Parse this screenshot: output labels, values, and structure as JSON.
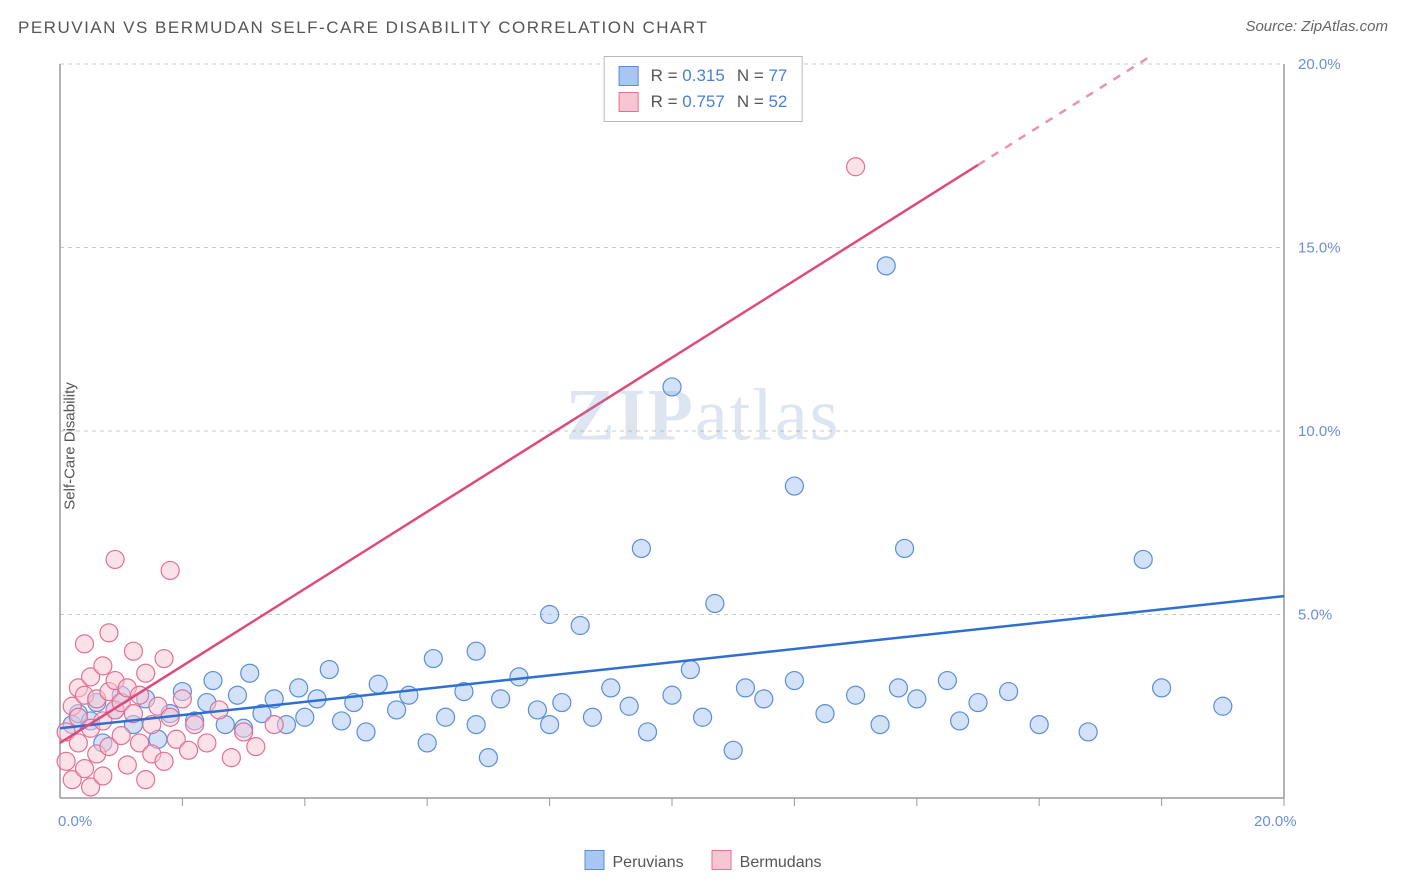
{
  "title": "PERUVIAN VS BERMUDAN SELF-CARE DISABILITY CORRELATION CHART",
  "source": "Source: ZipAtlas.com",
  "watermark": "ZIPatlas",
  "ylabel": "Self-Care Disability",
  "chart": {
    "type": "scatter",
    "xlim": [
      0,
      20
    ],
    "ylim": [
      0,
      20
    ],
    "xtick_step": 2,
    "ytick_step": 5,
    "ytick_labels": [
      "5.0%",
      "10.0%",
      "15.0%",
      "20.0%"
    ],
    "xtick_origin": "0.0%",
    "xtick_max": "20.0%",
    "grid_color": "#c9c9c9",
    "axis_color": "#999999",
    "background_color": "#ffffff",
    "marker_radius": 9,
    "marker_fill_opacity": 0.5,
    "series": [
      {
        "label": "Peruvians",
        "color_fill": "#a7c6f2",
        "color_stroke": "#5a8fd8",
        "trend": {
          "slope": 0.18,
          "intercept": 1.9,
          "color": "#2f6fd0",
          "width": 2.5
        },
        "points": [
          [
            0.2,
            2.0
          ],
          [
            0.3,
            2.3
          ],
          [
            0.5,
            2.1
          ],
          [
            0.6,
            2.6
          ],
          [
            0.7,
            1.5
          ],
          [
            0.9,
            2.4
          ],
          [
            1.0,
            2.8
          ],
          [
            1.2,
            2.0
          ],
          [
            1.4,
            2.7
          ],
          [
            1.6,
            1.6
          ],
          [
            1.8,
            2.3
          ],
          [
            2.0,
            2.9
          ],
          [
            2.2,
            2.1
          ],
          [
            2.4,
            2.6
          ],
          [
            2.5,
            3.2
          ],
          [
            2.7,
            2.0
          ],
          [
            2.9,
            2.8
          ],
          [
            3.0,
            1.9
          ],
          [
            3.1,
            3.4
          ],
          [
            3.3,
            2.3
          ],
          [
            3.5,
            2.7
          ],
          [
            3.7,
            2.0
          ],
          [
            3.9,
            3.0
          ],
          [
            4.0,
            2.2
          ],
          [
            4.2,
            2.7
          ],
          [
            4.4,
            3.5
          ],
          [
            4.6,
            2.1
          ],
          [
            4.8,
            2.6
          ],
          [
            5.0,
            1.8
          ],
          [
            5.2,
            3.1
          ],
          [
            5.5,
            2.4
          ],
          [
            5.7,
            2.8
          ],
          [
            6.0,
            1.5
          ],
          [
            6.1,
            3.8
          ],
          [
            6.3,
            2.2
          ],
          [
            6.6,
            2.9
          ],
          [
            6.8,
            2.0
          ],
          [
            6.8,
            4.0
          ],
          [
            7.0,
            1.1
          ],
          [
            7.2,
            2.7
          ],
          [
            7.5,
            3.3
          ],
          [
            7.8,
            2.4
          ],
          [
            8.0,
            2.0
          ],
          [
            8.0,
            5.0
          ],
          [
            8.2,
            2.6
          ],
          [
            8.5,
            4.7
          ],
          [
            8.7,
            2.2
          ],
          [
            9.0,
            3.0
          ],
          [
            9.3,
            2.5
          ],
          [
            9.5,
            6.8
          ],
          [
            9.6,
            1.8
          ],
          [
            10.0,
            2.8
          ],
          [
            10.3,
            3.5
          ],
          [
            10.5,
            2.2
          ],
          [
            10.7,
            5.3
          ],
          [
            11.0,
            1.3
          ],
          [
            10.0,
            11.2
          ],
          [
            11.2,
            3.0
          ],
          [
            11.5,
            2.7
          ],
          [
            12.0,
            3.2
          ],
          [
            12.0,
            8.5
          ],
          [
            12.5,
            2.3
          ],
          [
            13.0,
            2.8
          ],
          [
            13.4,
            2.0
          ],
          [
            13.7,
            3.0
          ],
          [
            13.8,
            6.8
          ],
          [
            14.0,
            2.7
          ],
          [
            14.5,
            3.2
          ],
          [
            14.7,
            2.1
          ],
          [
            15.0,
            2.6
          ],
          [
            15.5,
            2.9
          ],
          [
            16.0,
            2.0
          ],
          [
            16.8,
            1.8
          ],
          [
            17.7,
            6.5
          ],
          [
            13.5,
            14.5
          ],
          [
            18.0,
            3.0
          ],
          [
            19.0,
            2.5
          ]
        ]
      },
      {
        "label": "Bermudans",
        "color_fill": "#f7c6d3",
        "color_stroke": "#e56f94",
        "trend": {
          "slope": 1.05,
          "intercept": 1.5,
          "color": "#e04a7a",
          "width": 2.5,
          "dash_after_x": 15.0
        },
        "points": [
          [
            0.1,
            1.0
          ],
          [
            0.1,
            1.8
          ],
          [
            0.2,
            2.5
          ],
          [
            0.2,
            0.5
          ],
          [
            0.3,
            3.0
          ],
          [
            0.3,
            1.5
          ],
          [
            0.3,
            2.2
          ],
          [
            0.4,
            2.8
          ],
          [
            0.4,
            0.8
          ],
          [
            0.4,
            4.2
          ],
          [
            0.5,
            1.9
          ],
          [
            0.5,
            3.3
          ],
          [
            0.5,
            0.3
          ],
          [
            0.6,
            2.7
          ],
          [
            0.6,
            1.2
          ],
          [
            0.7,
            3.6
          ],
          [
            0.7,
            2.1
          ],
          [
            0.7,
            0.6
          ],
          [
            0.8,
            2.9
          ],
          [
            0.8,
            4.5
          ],
          [
            0.8,
            1.4
          ],
          [
            0.9,
            2.4
          ],
          [
            0.9,
            3.2
          ],
          [
            0.9,
            6.5
          ],
          [
            1.0,
            1.7
          ],
          [
            1.0,
            2.6
          ],
          [
            1.1,
            3.0
          ],
          [
            1.1,
            0.9
          ],
          [
            1.2,
            2.3
          ],
          [
            1.2,
            4.0
          ],
          [
            1.3,
            1.5
          ],
          [
            1.3,
            2.8
          ],
          [
            1.4,
            3.4
          ],
          [
            1.4,
            0.5
          ],
          [
            1.5,
            2.0
          ],
          [
            1.5,
            1.2
          ],
          [
            1.6,
            2.5
          ],
          [
            1.7,
            1.0
          ],
          [
            1.7,
            3.8
          ],
          [
            1.8,
            2.2
          ],
          [
            1.8,
            6.2
          ],
          [
            1.9,
            1.6
          ],
          [
            2.0,
            2.7
          ],
          [
            2.1,
            1.3
          ],
          [
            2.2,
            2.0
          ],
          [
            2.4,
            1.5
          ],
          [
            2.6,
            2.4
          ],
          [
            2.8,
            1.1
          ],
          [
            3.0,
            1.8
          ],
          [
            3.2,
            1.4
          ],
          [
            3.5,
            2.0
          ],
          [
            13.0,
            17.2
          ]
        ]
      }
    ]
  },
  "stats": [
    {
      "swatch_fill": "#a7c6f2",
      "swatch_stroke": "#5a8fd8",
      "r": "0.315",
      "n": "77"
    },
    {
      "swatch_fill": "#f7c6d3",
      "swatch_stroke": "#e56f94",
      "r": "0.757",
      "n": "52"
    }
  ],
  "legend": [
    {
      "swatch_fill": "#a7c6f2",
      "swatch_stroke": "#5a8fd8",
      "label": "Peruvians"
    },
    {
      "swatch_fill": "#f7c6d3",
      "swatch_stroke": "#e56f94",
      "label": "Bermudans"
    }
  ]
}
